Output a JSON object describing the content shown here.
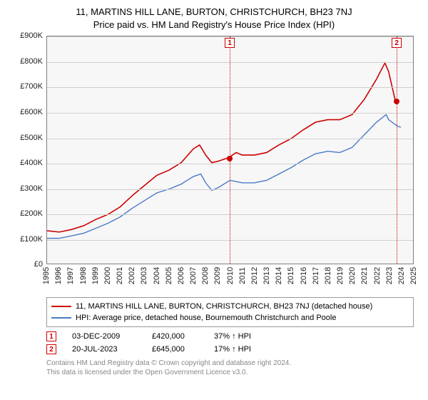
{
  "title_line1": "11, MARTINS HILL LANE, BURTON, CHRISTCHURCH, BH23 7NJ",
  "title_line2": "Price paid vs. HM Land Registry's House Price Index (HPI)",
  "chart": {
    "type": "line",
    "background_color": "#f7f7f7",
    "grid_color": "#d0d0d0",
    "border_color": "#808080",
    "ylim": [
      0,
      900000
    ],
    "ytick_step": 100000,
    "ytick_labels": [
      "£0",
      "£100K",
      "£200K",
      "£300K",
      "£400K",
      "£500K",
      "£600K",
      "£700K",
      "£800K",
      "£900K"
    ],
    "xlim": [
      1995,
      2025
    ],
    "xticks": [
      1995,
      1996,
      1997,
      1998,
      1999,
      2000,
      2001,
      2002,
      2003,
      2004,
      2005,
      2006,
      2007,
      2008,
      2009,
      2010,
      2011,
      2012,
      2013,
      2014,
      2015,
      2016,
      2017,
      2018,
      2019,
      2020,
      2021,
      2022,
      2023,
      2024,
      2025
    ],
    "axis_font_size": 11,
    "series": [
      {
        "name": "property_price",
        "color": "#cc0000",
        "line_width": 1.6,
        "data": [
          [
            1995,
            130000
          ],
          [
            1996,
            125000
          ],
          [
            1997,
            135000
          ],
          [
            1998,
            150000
          ],
          [
            1999,
            175000
          ],
          [
            2000,
            195000
          ],
          [
            2001,
            225000
          ],
          [
            2002,
            270000
          ],
          [
            2003,
            310000
          ],
          [
            2004,
            350000
          ],
          [
            2005,
            370000
          ],
          [
            2006,
            400000
          ],
          [
            2007,
            455000
          ],
          [
            2007.5,
            470000
          ],
          [
            2008,
            430000
          ],
          [
            2008.5,
            400000
          ],
          [
            2009,
            405000
          ],
          [
            2009.9,
            420000
          ],
          [
            2010.5,
            440000
          ],
          [
            2011,
            430000
          ],
          [
            2012,
            430000
          ],
          [
            2013,
            440000
          ],
          [
            2014,
            470000
          ],
          [
            2015,
            495000
          ],
          [
            2016,
            530000
          ],
          [
            2017,
            560000
          ],
          [
            2018,
            570000
          ],
          [
            2019,
            570000
          ],
          [
            2020,
            590000
          ],
          [
            2021,
            650000
          ],
          [
            2022,
            730000
          ],
          [
            2022.7,
            795000
          ],
          [
            2023,
            760000
          ],
          [
            2023.55,
            645000
          ],
          [
            2023.6,
            640000
          ]
        ]
      },
      {
        "name": "hpi",
        "color": "#4a7bc7",
        "line_width": 1.4,
        "data": [
          [
            1995,
            100000
          ],
          [
            1996,
            100000
          ],
          [
            1997,
            110000
          ],
          [
            1998,
            120000
          ],
          [
            1999,
            140000
          ],
          [
            2000,
            160000
          ],
          [
            2001,
            185000
          ],
          [
            2002,
            220000
          ],
          [
            2003,
            250000
          ],
          [
            2004,
            280000
          ],
          [
            2005,
            295000
          ],
          [
            2006,
            315000
          ],
          [
            2007,
            345000
          ],
          [
            2007.6,
            355000
          ],
          [
            2008,
            320000
          ],
          [
            2008.5,
            290000
          ],
          [
            2009,
            300000
          ],
          [
            2010,
            330000
          ],
          [
            2011,
            320000
          ],
          [
            2012,
            320000
          ],
          [
            2013,
            330000
          ],
          [
            2014,
            355000
          ],
          [
            2015,
            380000
          ],
          [
            2016,
            410000
          ],
          [
            2017,
            435000
          ],
          [
            2018,
            445000
          ],
          [
            2019,
            440000
          ],
          [
            2020,
            460000
          ],
          [
            2021,
            510000
          ],
          [
            2022,
            560000
          ],
          [
            2022.8,
            590000
          ],
          [
            2023,
            570000
          ],
          [
            2023.7,
            545000
          ],
          [
            2024,
            540000
          ]
        ]
      }
    ],
    "sale_markers": [
      {
        "n": 1,
        "x": 2009.92,
        "y": 420000
      },
      {
        "n": 2,
        "x": 2023.55,
        "y": 645000
      }
    ]
  },
  "legend": {
    "items": [
      {
        "color": "#cc0000",
        "label": "11, MARTINS HILL LANE, BURTON, CHRISTCHURCH, BH23 7NJ (detached house)"
      },
      {
        "color": "#4a7bc7",
        "label": "HPI: Average price, detached house, Bournemouth Christchurch and Poole"
      }
    ]
  },
  "sales": [
    {
      "n": "1",
      "date": "03-DEC-2009",
      "price": "£420,000",
      "pct": "37% ↑ HPI"
    },
    {
      "n": "2",
      "date": "20-JUL-2023",
      "price": "£645,000",
      "pct": "17% ↑ HPI"
    }
  ],
  "footer_line1": "Contains HM Land Registry data © Crown copyright and database right 2024.",
  "footer_line2": "This data is licensed under the Open Government Licence v3.0."
}
